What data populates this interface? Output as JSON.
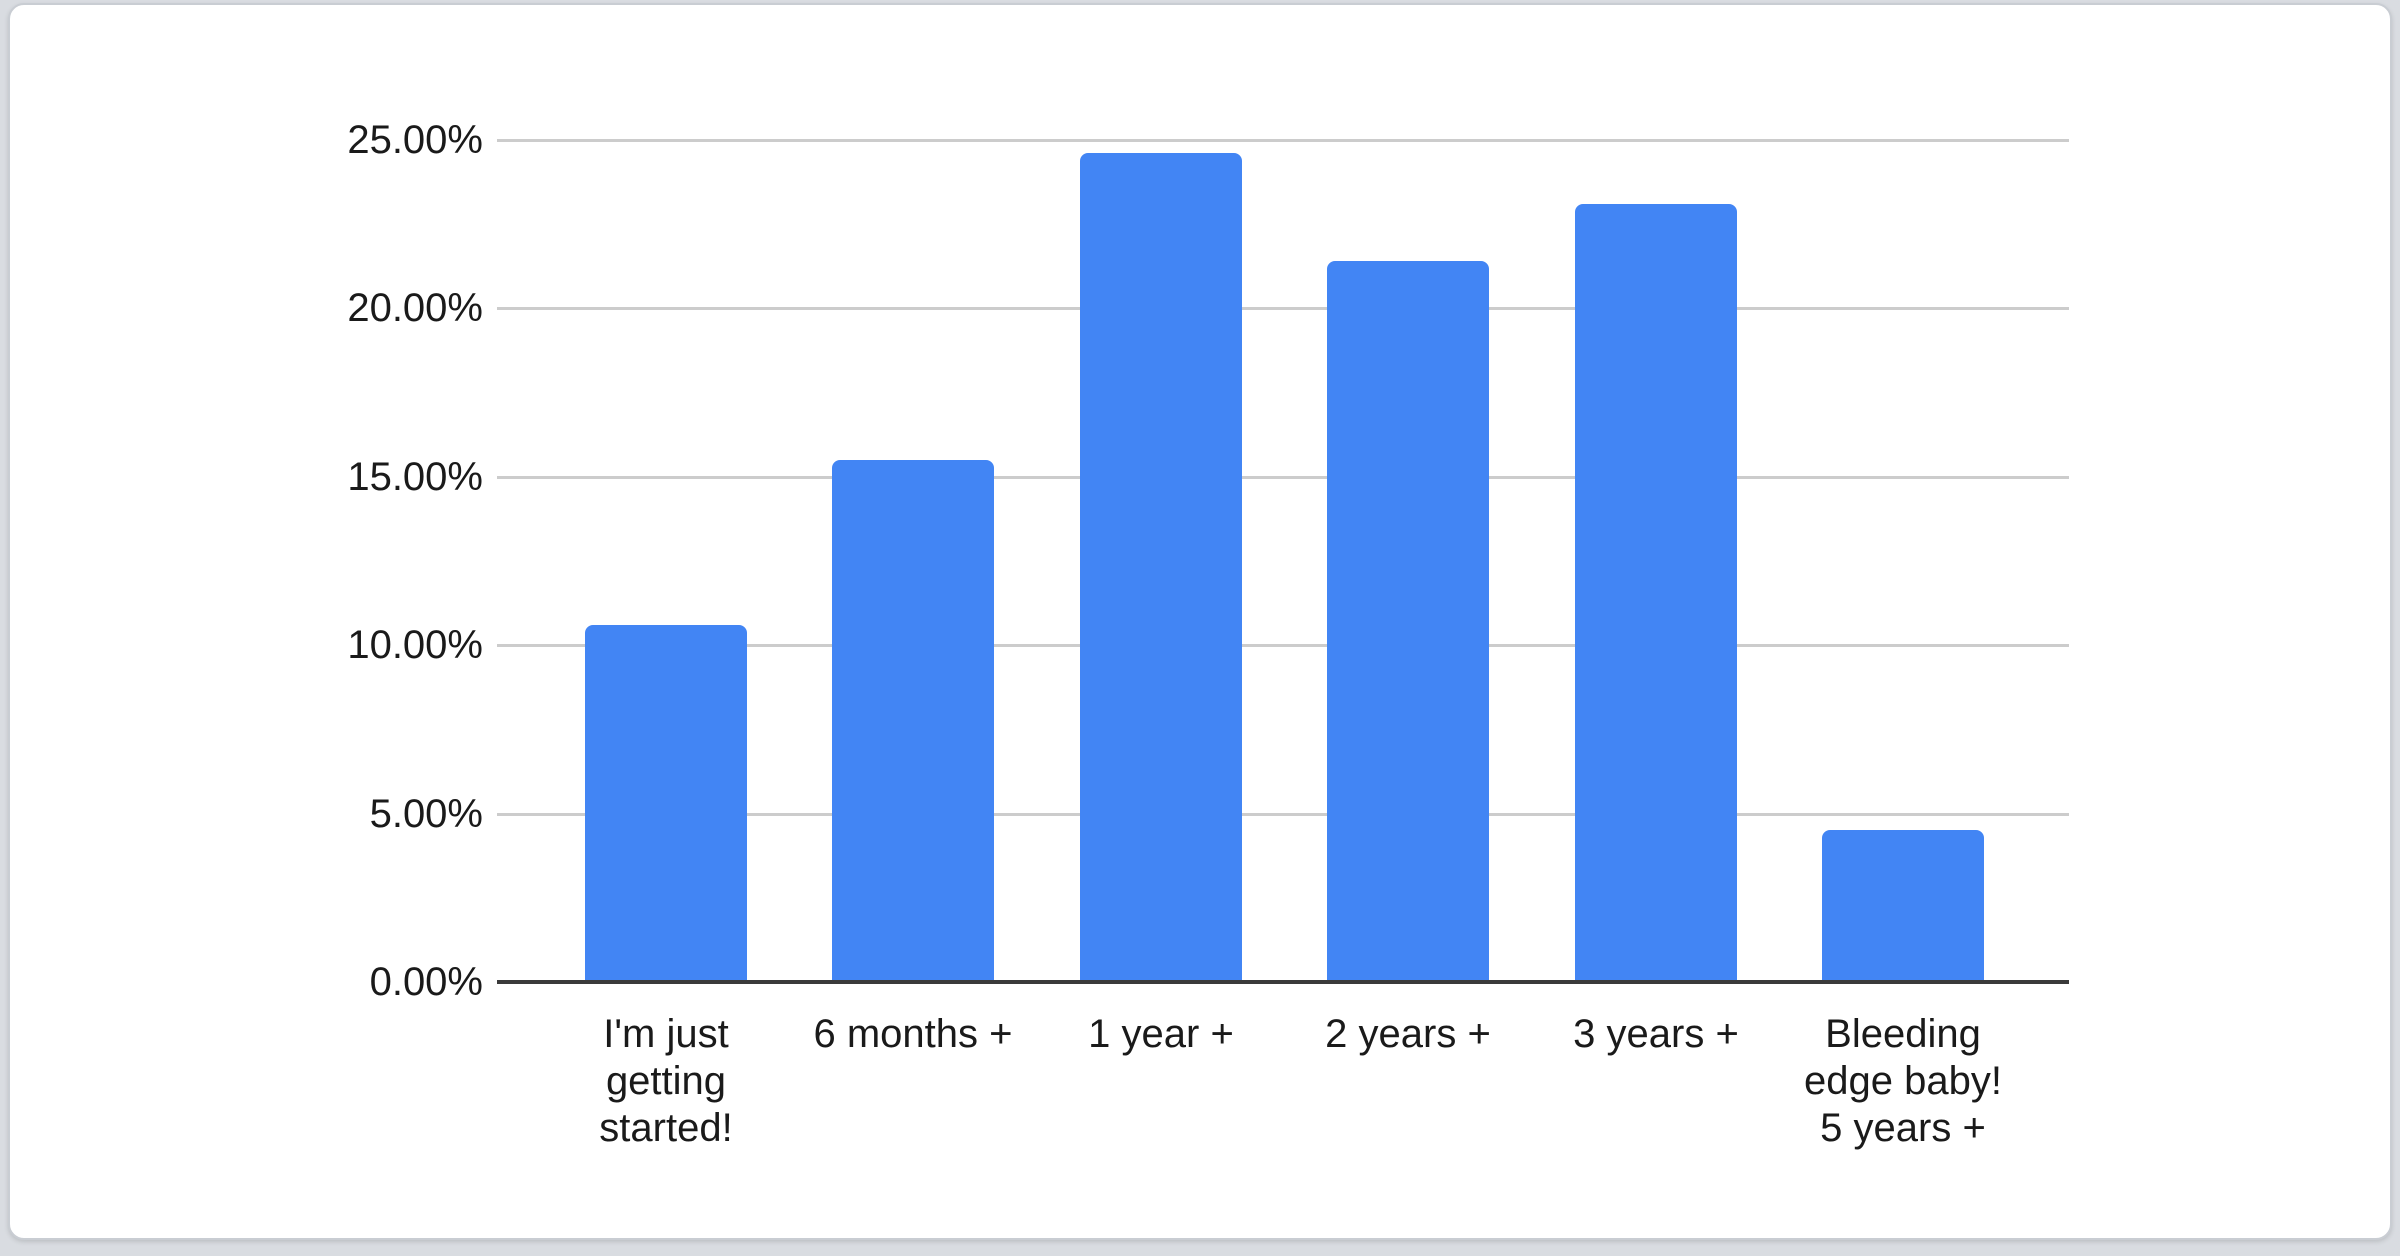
{
  "page": {
    "background_color": "#d9dce1",
    "card_background_color": "#ffffff",
    "card_border_color": "#c9cdd3"
  },
  "chart_data": {
    "type": "bar",
    "title": "",
    "xlabel": "",
    "ylabel": "",
    "legend": "none",
    "grid": true,
    "ylim": [
      0,
      25
    ],
    "categories": [
      "I'm just getting started!",
      "6 months +",
      "1 year +",
      "2 years +",
      "3 years +",
      "Bleeding edge baby! 5 years +"
    ],
    "category_lines": [
      [
        "I'm just",
        "getting",
        "started!"
      ],
      [
        "6 months +"
      ],
      [
        "1 year +"
      ],
      [
        "2 years +"
      ],
      [
        "3 years +"
      ],
      [
        "Bleeding",
        "edge baby!",
        "5 years +"
      ]
    ],
    "values": [
      10.6,
      15.5,
      24.6,
      21.4,
      23.1,
      4.5
    ],
    "y_ticks": [
      {
        "value": 0,
        "label": "0.00%"
      },
      {
        "value": 5,
        "label": "5.00%"
      },
      {
        "value": 10,
        "label": "10.00%"
      },
      {
        "value": 15,
        "label": "15.00%"
      },
      {
        "value": 20,
        "label": "20.00%"
      },
      {
        "value": 25,
        "label": "25.00%"
      }
    ],
    "bar_color": "#4285f4",
    "gridline_color": "#cccccc",
    "axis_line_color": "#3a3a3a",
    "label_color": "#1a1a1a"
  }
}
